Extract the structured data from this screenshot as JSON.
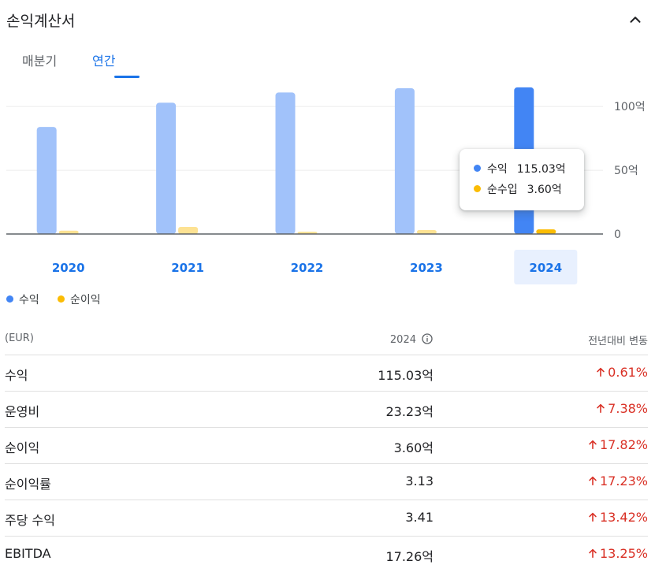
{
  "header": {
    "title": "손익계산서"
  },
  "tabs": [
    {
      "label": "매분기",
      "active": false
    },
    {
      "label": "연간",
      "active": true
    }
  ],
  "colors": {
    "revenue": "#a1c2fa",
    "revenue_selected": "#4285f4",
    "net_income": "#fde293",
    "net_income_selected": "#fbbc04"
  },
  "chart_data": {
    "type": "bar",
    "categories": [
      "2020",
      "2021",
      "2022",
      "2023",
      "2024"
    ],
    "series": [
      {
        "name": "수익",
        "values": [
          84,
          103,
          111,
          114.34,
          115.03
        ]
      },
      {
        "name": "순이익",
        "values": [
          2.6,
          5.6,
          1.8,
          3.06,
          3.6
        ]
      }
    ],
    "ylim": [
      0,
      110
    ],
    "yticks": [
      {
        "value": 0,
        "label": "0"
      },
      {
        "value": 50,
        "label": "50억"
      },
      {
        "value": 100,
        "label": "100억"
      }
    ],
    "selected_category": "2024",
    "grid": true
  },
  "tooltip": {
    "rows": [
      {
        "label": "수익",
        "value": "115.03억"
      },
      {
        "label": "순수입",
        "value": "3.60억"
      }
    ]
  },
  "legend": [
    {
      "label": "수익"
    },
    {
      "label": "순이익"
    }
  ],
  "table": {
    "header": {
      "currency": "(EUR)",
      "year": "2024",
      "change": "전년대비 변동"
    },
    "rows": [
      {
        "label": "수익",
        "value": "115.03억",
        "change": "0.61%"
      },
      {
        "label": "운영비",
        "value": "23.23억",
        "change": "7.38%"
      },
      {
        "label": "순이익",
        "value": "3.60억",
        "change": "17.82%"
      },
      {
        "label": "순이익률",
        "value": "3.13",
        "change": "17.23%"
      },
      {
        "label": "주당 수익",
        "value": "3.41",
        "change": "13.42%"
      },
      {
        "label": "EBITDA",
        "value": "17.26억",
        "change": "13.25%"
      }
    ]
  }
}
